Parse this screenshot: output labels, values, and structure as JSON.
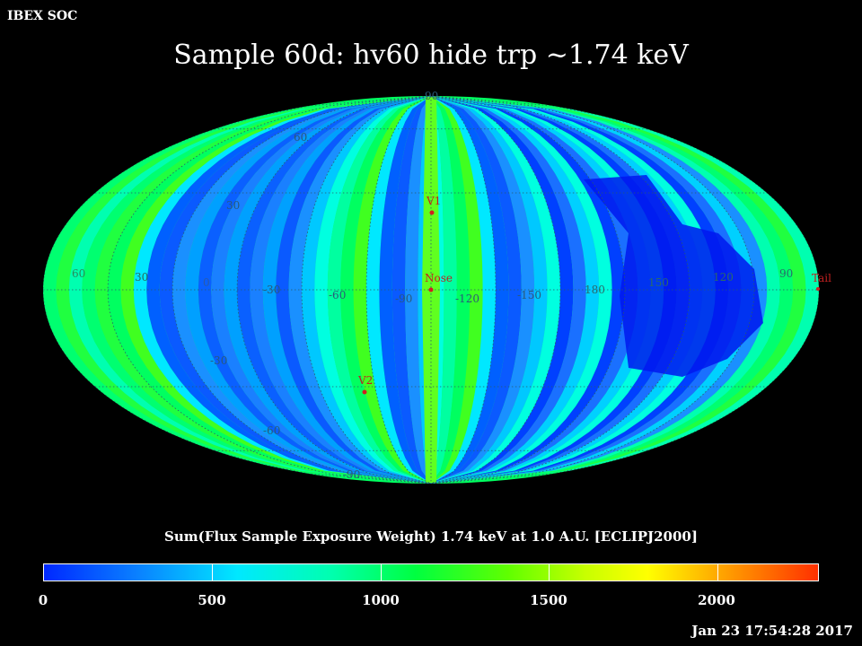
{
  "header": {
    "source_label": "IBEX SOC",
    "title": "Sample 60d: hv60 hide trp ~1.74 keV"
  },
  "map": {
    "projection": "aitoff-ellipse",
    "longitude_labels": [
      "60",
      "30",
      "0",
      "-30",
      "-60",
      "-90",
      "-120",
      "-150",
      "180",
      "150",
      "120",
      "90"
    ],
    "latitude_labels": [
      "90",
      "60",
      "30",
      "-30",
      "-60",
      "-90"
    ],
    "markers": [
      {
        "name": "V1",
        "lon": 0,
        "lat": 32,
        "color": "#cc2222"
      },
      {
        "name": "Nose",
        "lon": 0,
        "lat": -2,
        "color": "#cc2222"
      },
      {
        "name": "V2",
        "lon": -22,
        "lat": -42,
        "color": "#cc2222"
      },
      {
        "name": "Tail",
        "lon": 180,
        "lat": -2,
        "color": "#cc2222"
      }
    ]
  },
  "caption": "Sum(Flux Sample Exposure Weight)  1.74 keV at 1.0 A.U. [ECLIPJ2000]",
  "colorbar": {
    "min": 0,
    "max": 2300,
    "tick_values": [
      0,
      500,
      1000,
      1500,
      2000
    ],
    "tick_labels": [
      "0",
      "500",
      "1000",
      "1500",
      "2000"
    ]
  },
  "timestamp": "Jan 23 17:54:28 2017"
}
